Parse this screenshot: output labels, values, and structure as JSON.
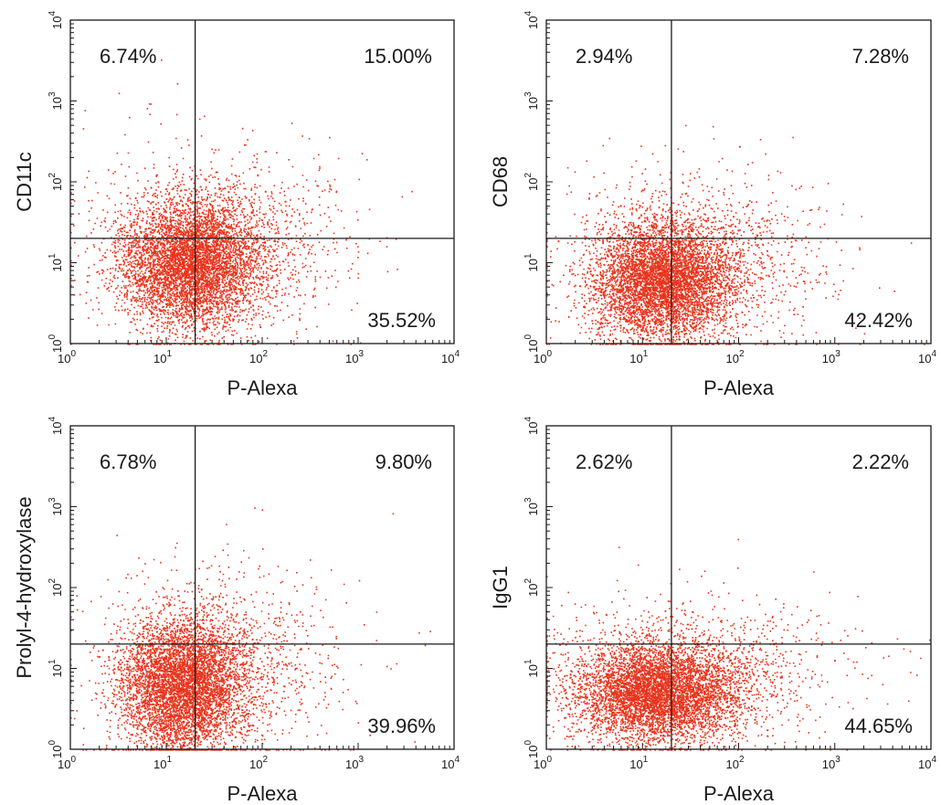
{
  "chart_data": [
    {
      "type": "scatter",
      "xlabel": "P-Alexa",
      "ylabel": "CD11c",
      "x_scale": "log",
      "y_scale": "log",
      "xlim": [
        1,
        10000
      ],
      "ylim": [
        1,
        10000
      ],
      "x_ticks": [
        {
          "base": "10",
          "exp": "0",
          "value": 1
        },
        {
          "base": "10",
          "exp": "1",
          "value": 10
        },
        {
          "base": "10",
          "exp": "2",
          "value": 100
        },
        {
          "base": "10",
          "exp": "3",
          "value": 1000
        },
        {
          "base": "10",
          "exp": "4",
          "value": 10000
        }
      ],
      "y_ticks": [
        {
          "base": "10",
          "exp": "0",
          "value": 1
        },
        {
          "base": "10",
          "exp": "1",
          "value": 10
        },
        {
          "base": "10",
          "exp": "2",
          "value": 100
        },
        {
          "base": "10",
          "exp": "3",
          "value": 1000
        },
        {
          "base": "10",
          "exp": "4",
          "value": 10000
        }
      ],
      "gate": {
        "x": 20,
        "y": 20
      },
      "quadrants": {
        "upper_left": "6.74%",
        "upper_right": "15.00%",
        "lower_right": "35.52%"
      },
      "point_color": "#e8341c",
      "population": {
        "center": [
          18,
          10
        ],
        "spread": [
          0.36,
          0.38
        ],
        "n": 6500
      }
    },
    {
      "type": "scatter",
      "xlabel": "P-Alexa",
      "ylabel": "CD68",
      "x_scale": "log",
      "y_scale": "log",
      "xlim": [
        1,
        10000
      ],
      "ylim": [
        1,
        10000
      ],
      "x_ticks": [
        {
          "base": "10",
          "exp": "0",
          "value": 1
        },
        {
          "base": "10",
          "exp": "1",
          "value": 10
        },
        {
          "base": "10",
          "exp": "2",
          "value": 100
        },
        {
          "base": "10",
          "exp": "3",
          "value": 1000
        },
        {
          "base": "10",
          "exp": "4",
          "value": 10000
        }
      ],
      "y_ticks": [
        {
          "base": "10",
          "exp": "0",
          "value": 1
        },
        {
          "base": "10",
          "exp": "1",
          "value": 10
        },
        {
          "base": "10",
          "exp": "2",
          "value": 100
        },
        {
          "base": "10",
          "exp": "3",
          "value": 1000
        },
        {
          "base": "10",
          "exp": "4",
          "value": 10000
        }
      ],
      "gate": {
        "x": 20,
        "y": 20
      },
      "quadrants": {
        "upper_left": "2.94%",
        "upper_right": "7.28%",
        "lower_right": "42.42%"
      },
      "point_color": "#e8341c",
      "population": {
        "center": [
          16,
          6
        ],
        "spread": [
          0.36,
          0.36
        ],
        "n": 6500
      }
    },
    {
      "type": "scatter",
      "xlabel": "P-Alexa",
      "ylabel": "Prolyl-4-hydroxylase",
      "x_scale": "log",
      "y_scale": "log",
      "xlim": [
        1,
        10000
      ],
      "ylim": [
        1,
        10000
      ],
      "x_ticks": [
        {
          "base": "10",
          "exp": "0",
          "value": 1
        },
        {
          "base": "10",
          "exp": "1",
          "value": 10
        },
        {
          "base": "10",
          "exp": "2",
          "value": 100
        },
        {
          "base": "10",
          "exp": "3",
          "value": 1000
        },
        {
          "base": "10",
          "exp": "4",
          "value": 10000
        }
      ],
      "y_ticks": [
        {
          "base": "10",
          "exp": "0",
          "value": 1
        },
        {
          "base": "10",
          "exp": "1",
          "value": 10
        },
        {
          "base": "10",
          "exp": "2",
          "value": 100
        },
        {
          "base": "10",
          "exp": "3",
          "value": 1000
        },
        {
          "base": "10",
          "exp": "4",
          "value": 10000
        }
      ],
      "gate": {
        "x": 20,
        "y": 20
      },
      "quadrants": {
        "upper_left": "6.78%",
        "upper_right": "9.80%",
        "lower_right": "39.96%"
      },
      "point_color": "#e8341c",
      "population": {
        "center": [
          15,
          6
        ],
        "spread": [
          0.32,
          0.4
        ],
        "n": 6500
      }
    },
    {
      "type": "scatter",
      "xlabel": "P-Alexa",
      "ylabel": "IgG1",
      "x_scale": "log",
      "y_scale": "log",
      "xlim": [
        1,
        10000
      ],
      "ylim": [
        1,
        10000
      ],
      "x_ticks": [
        {
          "base": "10",
          "exp": "0",
          "value": 1
        },
        {
          "base": "10",
          "exp": "1",
          "value": 10
        },
        {
          "base": "10",
          "exp": "2",
          "value": 100
        },
        {
          "base": "10",
          "exp": "3",
          "value": 1000
        },
        {
          "base": "10",
          "exp": "4",
          "value": 10000
        }
      ],
      "y_ticks": [
        {
          "base": "10",
          "exp": "0",
          "value": 1
        },
        {
          "base": "10",
          "exp": "1",
          "value": 10
        },
        {
          "base": "10",
          "exp": "2",
          "value": 100
        },
        {
          "base": "10",
          "exp": "3",
          "value": 1000
        },
        {
          "base": "10",
          "exp": "4",
          "value": 10000
        }
      ],
      "gate": {
        "x": 20,
        "y": 20
      },
      "quadrants": {
        "upper_left": "2.62%",
        "upper_right": "2.22%",
        "lower_right": "44.65%"
      },
      "point_color": "#e8341c",
      "population": {
        "center": [
          14,
          5
        ],
        "spread": [
          0.42,
          0.3
        ],
        "n": 6500
      }
    }
  ]
}
